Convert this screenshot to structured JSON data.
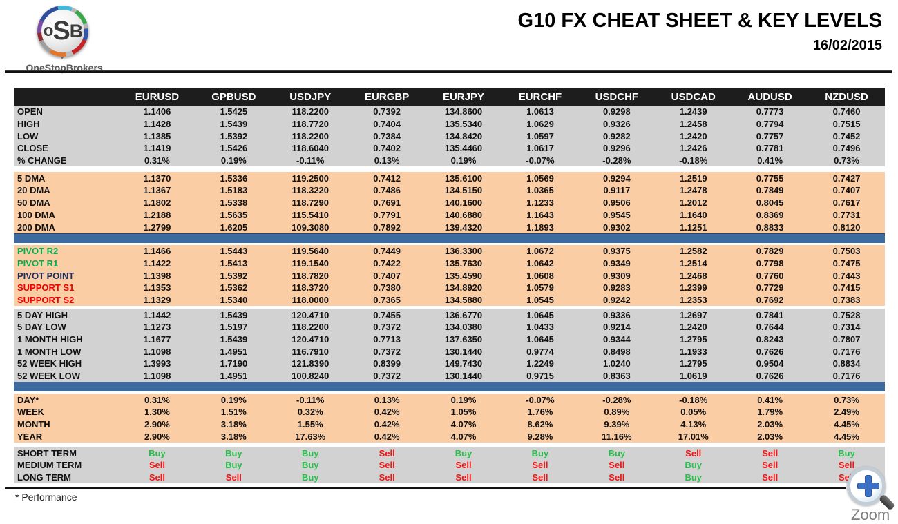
{
  "header": {
    "logo_text_o": "o",
    "logo_text_s": "S",
    "logo_text_b": "B",
    "brand_name": "OneStopBrokers",
    "title": "G10 FX CHEAT SHEET & KEY LEVELS",
    "date": "16/02/2015"
  },
  "footer": {
    "note": "* Performance",
    "zoom_label": "Zoom"
  },
  "colors": {
    "header_bg": "#1d1d1d",
    "band_gray": "#d2d2d2",
    "band_peach": "#fbcda4",
    "divider_blue": "#3d6b9f",
    "pivot_green": "#00b050",
    "pivot_navy": "#1c2d63",
    "support_red": "#f40000",
    "buy": "#29bf4d",
    "sell": "#f41414"
  },
  "table": {
    "columns": [
      "EURUSD",
      "GPBUSD",
      "USDJPY",
      "EURGBP",
      "EURJPY",
      "EURCHF",
      "USDCHF",
      "USDCAD",
      "AUDUSD",
      "NZDUSD"
    ],
    "sections": [
      {
        "id": "ohlc",
        "band": "gray",
        "after": "gap",
        "rows": [
          {
            "label": "OPEN",
            "values": [
              "1.1406",
              "1.5425",
              "118.2200",
              "0.7392",
              "134.8600",
              "1.0613",
              "0.9298",
              "1.2439",
              "0.7773",
              "0.7460"
            ]
          },
          {
            "label": "HIGH",
            "values": [
              "1.1428",
              "1.5439",
              "118.7720",
              "0.7404",
              "135.5340",
              "1.0629",
              "0.9326",
              "1.2458",
              "0.7794",
              "0.7515"
            ]
          },
          {
            "label": "LOW",
            "values": [
              "1.1385",
              "1.5392",
              "118.2200",
              "0.7384",
              "134.8420",
              "1.0597",
              "0.9282",
              "1.2420",
              "0.7757",
              "0.7452"
            ]
          },
          {
            "label": "CLOSE",
            "values": [
              "1.1419",
              "1.5426",
              "118.6040",
              "0.7402",
              "135.4460",
              "1.0617",
              "0.9296",
              "1.2426",
              "0.7781",
              "0.7496"
            ]
          },
          {
            "label": "% CHANGE",
            "values": [
              "0.31%",
              "0.19%",
              "-0.11%",
              "0.13%",
              "0.19%",
              "-0.07%",
              "-0.28%",
              "-0.18%",
              "0.41%",
              "0.73%"
            ]
          }
        ]
      },
      {
        "id": "dma",
        "band": "peach",
        "after": "blue",
        "rows": [
          {
            "label": "5 DMA",
            "values": [
              "1.1370",
              "1.5336",
              "119.2500",
              "0.7412",
              "135.6100",
              "1.0569",
              "0.9294",
              "1.2519",
              "0.7755",
              "0.7427"
            ]
          },
          {
            "label": "20 DMA",
            "values": [
              "1.1367",
              "1.5183",
              "118.3220",
              "0.7486",
              "134.5150",
              "1.0365",
              "0.9117",
              "1.2478",
              "0.7849",
              "0.7407"
            ]
          },
          {
            "label": "50 DMA",
            "values": [
              "1.1802",
              "1.5338",
              "118.7290",
              "0.7691",
              "140.1600",
              "1.1233",
              "0.9506",
              "1.2012",
              "0.8045",
              "0.7617"
            ]
          },
          {
            "label": "100 DMA",
            "values": [
              "1.2188",
              "1.5635",
              "115.5410",
              "0.7791",
              "140.6880",
              "1.1643",
              "0.9545",
              "1.1640",
              "0.8369",
              "0.7731"
            ]
          },
          {
            "label": "200 DMA",
            "values": [
              "1.2799",
              "1.6205",
              "109.3080",
              "0.7892",
              "139.4320",
              "1.1893",
              "0.9302",
              "1.1251",
              "0.8833",
              "0.8120"
            ]
          }
        ]
      },
      {
        "id": "pivots",
        "band": "peach",
        "after": "gap",
        "rows": [
          {
            "label": "PIVOT R2",
            "label_color": "pivot_green",
            "values": [
              "1.1466",
              "1.5443",
              "119.5640",
              "0.7449",
              "136.3300",
              "1.0672",
              "0.9375",
              "1.2582",
              "0.7829",
              "0.7503"
            ]
          },
          {
            "label": "PIVOT R1",
            "label_color": "pivot_green",
            "values": [
              "1.1422",
              "1.5413",
              "119.1540",
              "0.7422",
              "135.7630",
              "1.0642",
              "0.9349",
              "1.2514",
              "0.7798",
              "0.7475"
            ]
          },
          {
            "label": "PIVOT POINT",
            "label_color": "pivot_navy",
            "values": [
              "1.1398",
              "1.5392",
              "118.7820",
              "0.7407",
              "135.4590",
              "1.0608",
              "0.9309",
              "1.2468",
              "0.7760",
              "0.7443"
            ]
          },
          {
            "label": "SUPPORT S1",
            "label_color": "support_red",
            "values": [
              "1.1353",
              "1.5362",
              "118.3720",
              "0.7380",
              "134.8920",
              "1.0579",
              "0.9283",
              "1.2399",
              "0.7729",
              "0.7415"
            ]
          },
          {
            "label": "SUPPORT S2",
            "label_color": "support_red",
            "values": [
              "1.1329",
              "1.5340",
              "118.0000",
              "0.7365",
              "134.5880",
              "1.0545",
              "0.9242",
              "1.2353",
              "0.7692",
              "0.7383"
            ]
          }
        ]
      },
      {
        "id": "ranges",
        "band": "gray",
        "after": "blue",
        "rows": [
          {
            "label": "5 DAY HIGH",
            "values": [
              "1.1442",
              "1.5439",
              "120.4710",
              "0.7455",
              "136.6770",
              "1.0645",
              "0.9336",
              "1.2697",
              "0.7841",
              "0.7528"
            ]
          },
          {
            "label": "5 DAY LOW",
            "values": [
              "1.1273",
              "1.5197",
              "118.2200",
              "0.7372",
              "134.0380",
              "1.0433",
              "0.9214",
              "1.2420",
              "0.7644",
              "0.7314"
            ]
          },
          {
            "label": "1 MONTH HIGH",
            "values": [
              "1.1677",
              "1.5439",
              "120.4710",
              "0.7713",
              "137.6350",
              "1.0645",
              "0.9344",
              "1.2795",
              "0.8243",
              "0.7807"
            ]
          },
          {
            "label": "1 MONTH LOW",
            "values": [
              "1.1098",
              "1.4951",
              "116.7910",
              "0.7372",
              "130.1440",
              "0.9774",
              "0.8498",
              "1.1933",
              "0.7626",
              "0.7176"
            ]
          },
          {
            "label": "52 WEEK HIGH",
            "values": [
              "1.3993",
              "1.7190",
              "121.8390",
              "0.8399",
              "149.7430",
              "1.2249",
              "1.0240",
              "1.2795",
              "0.9504",
              "0.8834"
            ]
          },
          {
            "label": "52 WEEK LOW",
            "values": [
              "1.1098",
              "1.4951",
              "100.8240",
              "0.7372",
              "130.1440",
              "0.9715",
              "0.8363",
              "1.0619",
              "0.7626",
              "0.7176"
            ]
          }
        ]
      },
      {
        "id": "performance",
        "band": "peach",
        "after": "gap",
        "rows": [
          {
            "label": "DAY*",
            "values": [
              "0.31%",
              "0.19%",
              "-0.11%",
              "0.13%",
              "0.19%",
              "-0.07%",
              "-0.28%",
              "-0.18%",
              "0.41%",
              "0.73%"
            ]
          },
          {
            "label": "WEEK",
            "values": [
              "1.30%",
              "1.51%",
              "0.32%",
              "0.42%",
              "1.05%",
              "1.76%",
              "0.89%",
              "0.05%",
              "1.79%",
              "2.49%"
            ]
          },
          {
            "label": "MONTH",
            "values": [
              "2.90%",
              "3.18%",
              "1.55%",
              "0.42%",
              "4.07%",
              "8.62%",
              "9.39%",
              "4.13%",
              "2.03%",
              "4.45%"
            ]
          },
          {
            "label": "YEAR",
            "values": [
              "2.90%",
              "3.18%",
              "17.63%",
              "0.42%",
              "4.07%",
              "9.28%",
              "11.16%",
              "17.01%",
              "2.03%",
              "4.45%"
            ]
          }
        ]
      },
      {
        "id": "signals",
        "band": "gray",
        "signal": true,
        "rows": [
          {
            "label": "SHORT TERM",
            "values": [
              "Buy",
              "Buy",
              "Buy",
              "Sell",
              "Buy",
              "Buy",
              "Buy",
              "Sell",
              "Sell",
              "Buy"
            ]
          },
          {
            "label": "MEDIUM TERM",
            "values": [
              "Sell",
              "Buy",
              "Buy",
              "Sell",
              "Sell",
              "Sell",
              "Sell",
              "Buy",
              "Sell",
              "Sell"
            ]
          },
          {
            "label": "LONG TERM",
            "values": [
              "Sell",
              "Sell",
              "Buy",
              "Sell",
              "Sell",
              "Sell",
              "Sell",
              "Buy",
              "Sell",
              "Sell"
            ]
          }
        ]
      }
    ]
  }
}
